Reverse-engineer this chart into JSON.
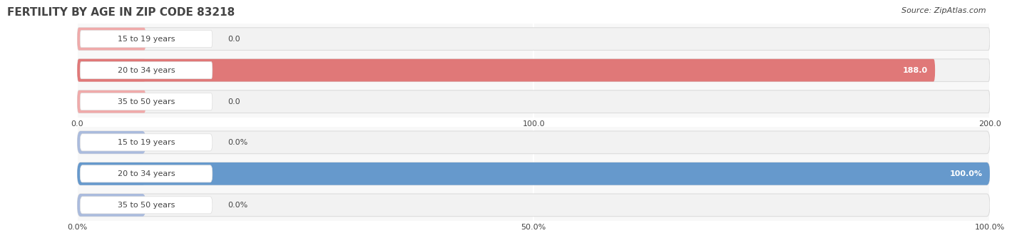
{
  "title": "FERTILITY BY AGE IN ZIP CODE 83218",
  "source": "Source: ZipAtlas.com",
  "top_chart": {
    "categories": [
      "15 to 19 years",
      "20 to 34 years",
      "35 to 50 years"
    ],
    "values": [
      0.0,
      188.0,
      0.0
    ],
    "bar_color": "#E07878",
    "bar_bg_color": "#F2F2F2",
    "bar_border_color": "#DDDDDD",
    "small_bar_color": "#F0AAAA",
    "xlim": [
      0,
      200
    ],
    "xticks": [
      0.0,
      100.0,
      200.0
    ],
    "is_percent": false
  },
  "bottom_chart": {
    "categories": [
      "15 to 19 years",
      "20 to 34 years",
      "35 to 50 years"
    ],
    "values": [
      0.0,
      100.0,
      0.0
    ],
    "bar_color": "#6699CC",
    "bar_bg_color": "#F2F2F2",
    "bar_border_color": "#DDDDDD",
    "small_bar_color": "#AABBDD",
    "xlim": [
      0,
      100
    ],
    "xticks": [
      0.0,
      50.0,
      100.0
    ],
    "is_percent": true
  },
  "bar_height": 0.72,
  "label_fontsize": 8,
  "tick_fontsize": 8,
  "title_fontsize": 11,
  "source_fontsize": 8,
  "fig_bg_color": "#FFFFFF",
  "chart_bg_color": "#F8F8F8",
  "text_color": "#444444",
  "white": "#FFFFFF"
}
